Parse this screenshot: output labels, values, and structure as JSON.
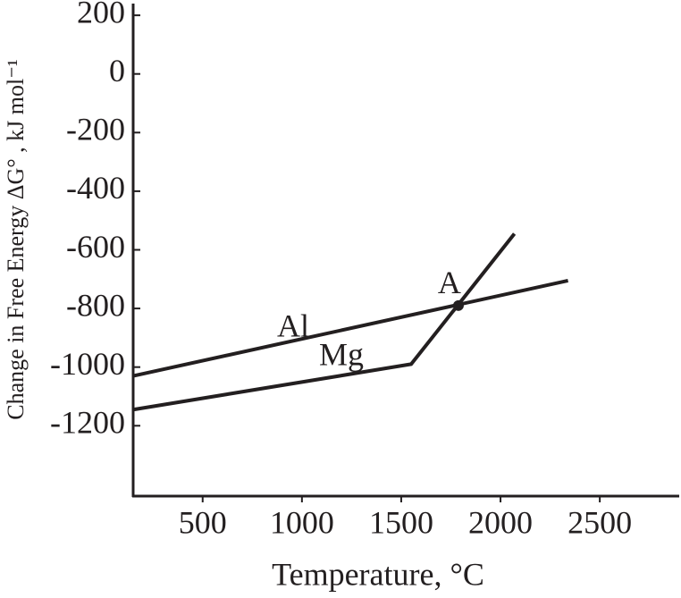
{
  "chart_data": {
    "type": "line",
    "xlabel": "Temperature, °C",
    "ylabel": "Change in Free Energy ΔG° , kJ mol⁻¹",
    "series": [
      {
        "name": "Al",
        "color": "#231f20",
        "x": [
          150,
          2340
        ],
        "values": [
          -1030,
          -705
        ]
      },
      {
        "name": "Mg",
        "color": "#231f20",
        "x": [
          150,
          1550,
          2070
        ],
        "values": [
          -1145,
          -990,
          -545
        ]
      }
    ],
    "annotations": [
      {
        "text": "A",
        "x": 1788,
        "y": -790
      }
    ],
    "xlim": [
      150,
      2900
    ],
    "ylim": [
      -1440,
      240
    ],
    "xticks": [
      500,
      1000,
      1500,
      2000,
      2500
    ],
    "yticks": [
      -1200,
      -1000,
      -800,
      -600,
      -400,
      -200,
      0,
      200
    ],
    "grid": false
  }
}
